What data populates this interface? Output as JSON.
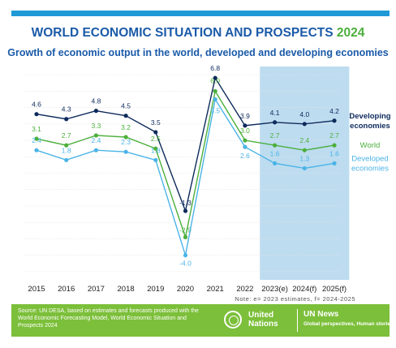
{
  "header": {
    "title": "WORLD ECONOMIC SITUATION AND PROSPECTS",
    "title_year": "2024",
    "subtitle": "Growth of economic output in the world, developed and developing economies"
  },
  "chart_data": {
    "type": "line",
    "categories": [
      "2015",
      "2016",
      "2017",
      "2018",
      "2019",
      "2020",
      "2021",
      "2022",
      "2023(e)",
      "2024(f)",
      "2025(f)"
    ],
    "series": [
      {
        "name": "Developing economies",
        "color": "#0d2a5c",
        "values": [
          4.6,
          4.3,
          4.8,
          4.5,
          3.5,
          -1.3,
          6.8,
          3.9,
          4.1,
          4.0,
          4.2
        ]
      },
      {
        "name": "World",
        "color": "#4caf3c",
        "values": [
          3.1,
          2.7,
          3.3,
          3.2,
          2.5,
          -2.9,
          6.0,
          3.0,
          2.7,
          2.4,
          2.7
        ]
      },
      {
        "name": "Developed economies",
        "color": "#4bb4e6",
        "values": [
          2.4,
          1.8,
          2.4,
          2.3,
          1.8,
          -4.0,
          5.5,
          2.6,
          1.6,
          1.3,
          1.6
        ]
      }
    ],
    "shaded_categories": [
      "2023(e)",
      "2024(f)",
      "2025(f)"
    ],
    "shade_color": "#bddcf0",
    "grid": true,
    "ylim": [
      -5.5,
      7.5
    ],
    "legend_placement": "right"
  },
  "note": "Note: e= 2023 estimates, f= 2024-2025",
  "footer": {
    "source": "Source: UN DESA, based on estimates and forecasts produced with the World Economic Forecasting Model, World Economic Situation and Prospects 2024",
    "un_line1": "United",
    "un_line2": "Nations",
    "news_title": "UN News",
    "news_tagline": "Global perspectives, Human stories"
  },
  "colors": {
    "background_bar": "#1f9ad6",
    "footer_green": "#7cbf3a",
    "title_blue": "#1a5aa8"
  }
}
